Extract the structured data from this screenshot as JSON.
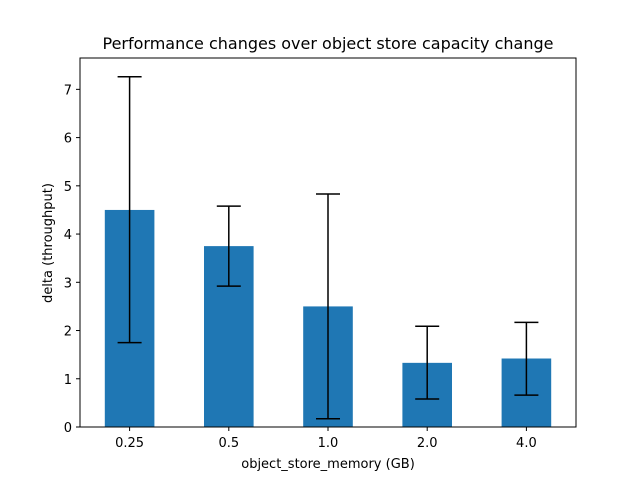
{
  "chart_data": {
    "type": "bar",
    "title": "Performance changes over object store capacity change",
    "xlabel": "object_store_memory (GB)",
    "ylabel": "delta (throughput)",
    "categories": [
      "0.25",
      "0.5",
      "1.0",
      "2.0",
      "4.0"
    ],
    "values": [
      4.5,
      3.75,
      2.5,
      1.33,
      1.42
    ],
    "error_low": [
      1.75,
      2.92,
      0.17,
      0.58,
      0.66
    ],
    "error_high": [
      7.26,
      4.58,
      4.83,
      2.09,
      2.17
    ],
    "ylim": [
      0,
      7.65
    ],
    "yticks": [
      0,
      1,
      2,
      3,
      4,
      5,
      6,
      7
    ],
    "grid": false,
    "legend": "none",
    "colors": {
      "bar": "#1f77b4",
      "error": "#000000",
      "axis": "#000000"
    }
  }
}
